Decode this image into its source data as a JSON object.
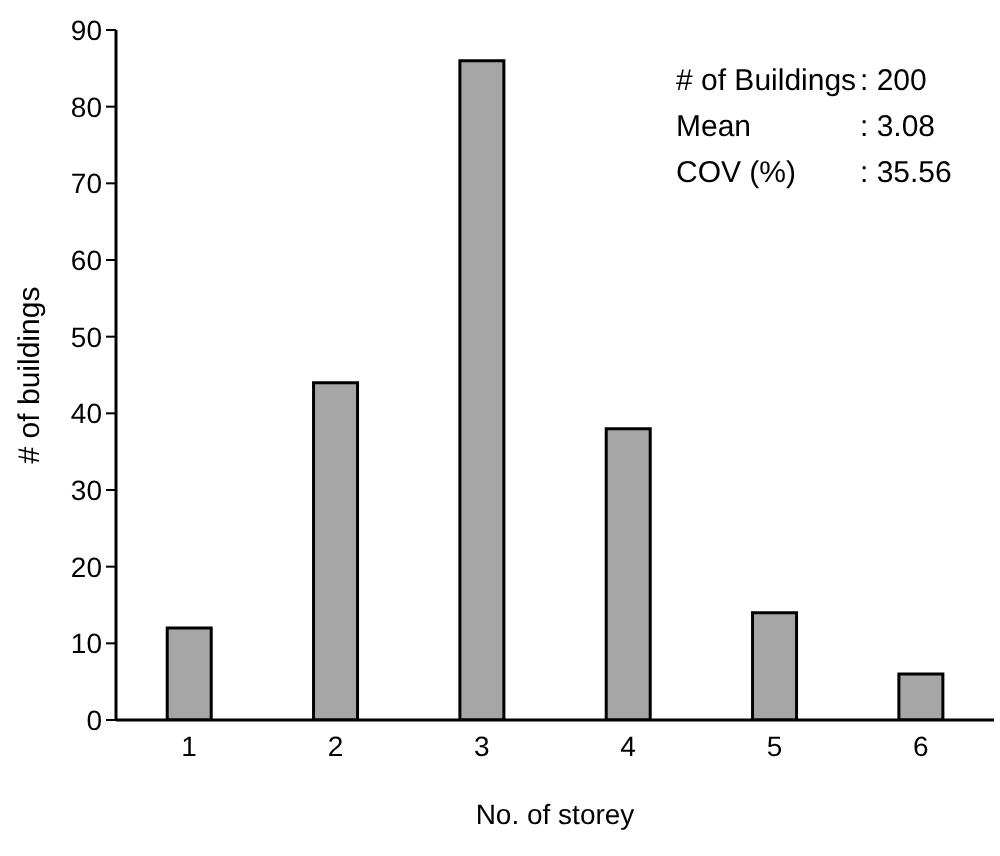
{
  "chart_data": {
    "type": "bar",
    "xlabel": "No. of storey",
    "ylabel": "# of buildings",
    "categories": [
      "1",
      "2",
      "3",
      "4",
      "5",
      "6"
    ],
    "values": [
      12,
      44,
      86,
      38,
      14,
      6
    ],
    "color": "#a6a6a6",
    "ylim": [
      0,
      90
    ],
    "yticks": [
      0,
      10,
      20,
      30,
      40,
      50,
      60,
      70,
      80,
      90
    ],
    "grid": false,
    "annotations": [
      "# of Buildings",
      ": 200",
      "Mean",
      ": 3.08",
      "COV (%)",
      ": 35.56"
    ]
  }
}
